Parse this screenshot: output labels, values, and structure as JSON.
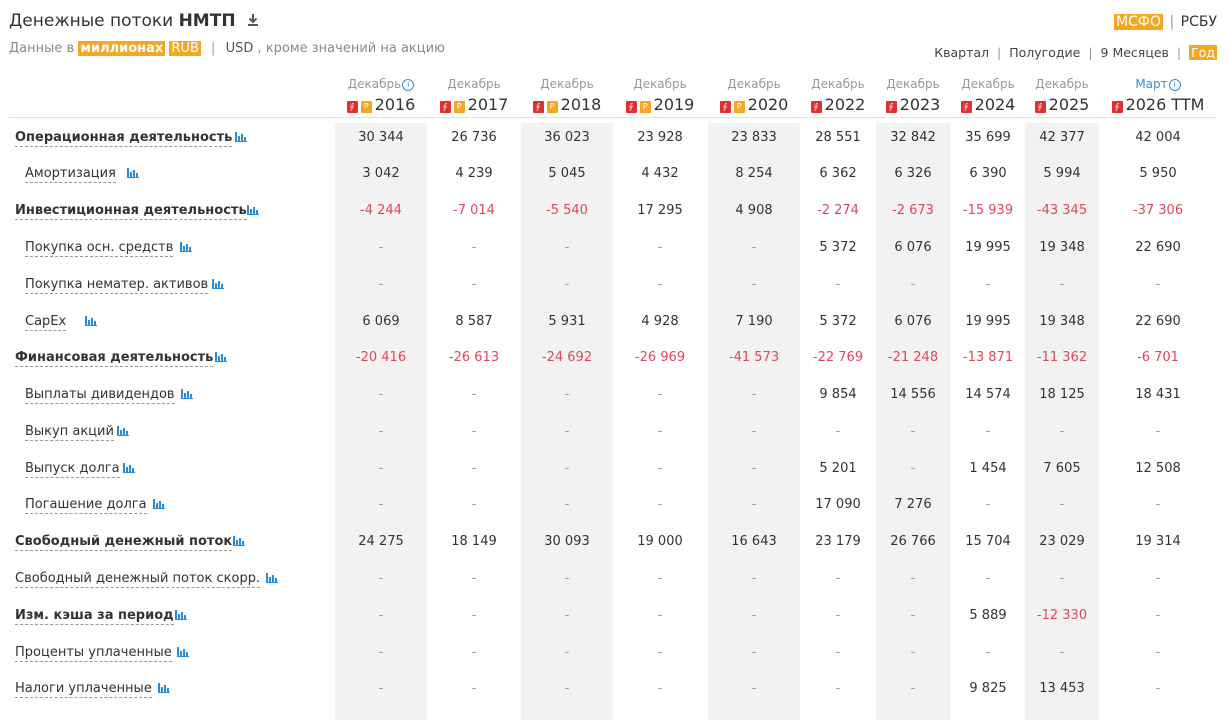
{
  "header": {
    "title_prefix": "Денежные потоки",
    "ticker": "НМТП",
    "subtitle_prefix": "Данные в",
    "units": "миллионах",
    "currency_rub": "RUB",
    "currency_usd": "USD",
    "subtitle_suffix": ", кроме значений на акцию",
    "std_ifrs": "МСФО",
    "std_ras": "РСБУ",
    "period_quarter": "Квартал",
    "period_half": "Полугодие",
    "period_9m": "9 Месяцев",
    "period_year": "Год",
    "colors": {
      "accent": "#f5a623",
      "negative": "#e0475b",
      "link": "#3a8fd0",
      "icon": "#2a8cd8"
    }
  },
  "columns": [
    {
      "month": "Декабрь",
      "info": true,
      "year": "2016",
      "pdf": true,
      "rsbu": true
    },
    {
      "month": "Декабрь",
      "info": false,
      "year": "2017",
      "pdf": true,
      "rsbu": true
    },
    {
      "month": "Декабрь",
      "info": false,
      "year": "2018",
      "pdf": true,
      "rsbu": true
    },
    {
      "month": "Декабрь",
      "info": false,
      "year": "2019",
      "pdf": true,
      "rsbu": true
    },
    {
      "month": "Декабрь",
      "info": false,
      "year": "2020",
      "pdf": true,
      "rsbu": true
    },
    {
      "month": "Декабрь",
      "info": false,
      "year": "2022",
      "pdf": true,
      "rsbu": false
    },
    {
      "month": "Декабрь",
      "info": false,
      "year": "2023",
      "pdf": true,
      "rsbu": false
    },
    {
      "month": "Декабрь",
      "info": false,
      "year": "2024",
      "pdf": true,
      "rsbu": false
    },
    {
      "month": "Декабрь",
      "info": false,
      "year": "2025",
      "pdf": true,
      "rsbu": false
    },
    {
      "month": "Март",
      "info": true,
      "year": "2026 TTM",
      "pdf": true,
      "rsbu": false
    }
  ],
  "rows": [
    {
      "label": "Операционная деятельность",
      "bold": true,
      "values": [
        "30 344",
        "26 736",
        "36 023",
        "23 928",
        "23 833",
        "28 551",
        "32 842",
        "35 699",
        "42 377",
        "42 004"
      ]
    },
    {
      "label": "Амортизация",
      "bold": false,
      "values": [
        "3 042",
        "4 239",
        "5 045",
        "4 432",
        "8 254",
        "6 362",
        "6 326",
        "6 390",
        "5 994",
        "5 950"
      ]
    },
    {
      "label": "Инвестиционная деятельность",
      "bold": true,
      "values": [
        "-4 244",
        "-7 014",
        "-5 540",
        "17 295",
        "4 908",
        "-2 274",
        "-2 673",
        "-15 939",
        "-43 345",
        "-37 306"
      ]
    },
    {
      "label": "Покупка осн. средств",
      "bold": false,
      "values": [
        "-",
        "-",
        "-",
        "-",
        "-",
        "5 372",
        "6 076",
        "19 995",
        "19 348",
        "22 690"
      ]
    },
    {
      "label": "Покупка нематер. активов",
      "bold": false,
      "values": [
        "-",
        "-",
        "-",
        "-",
        "-",
        "-",
        "-",
        "-",
        "-",
        "-"
      ]
    },
    {
      "label": "CapEx",
      "bold": false,
      "values": [
        "6 069",
        "8 587",
        "5 931",
        "4 928",
        "7 190",
        "5 372",
        "6 076",
        "19 995",
        "19 348",
        "22 690"
      ]
    },
    {
      "label": "Финансовая деятельность",
      "bold": true,
      "values": [
        "-20 416",
        "-26 613",
        "-24 692",
        "-26 969",
        "-41 573",
        "-22 769",
        "-21 248",
        "-13 871",
        "-11 362",
        "-6 701"
      ]
    },
    {
      "label": "Выплаты дивидендов",
      "bold": false,
      "values": [
        "-",
        "-",
        "-",
        "-",
        "-",
        "9 854",
        "14 556",
        "14 574",
        "18 125",
        "18 431"
      ]
    },
    {
      "label": "Выкуп акций",
      "bold": false,
      "values": [
        "-",
        "-",
        "-",
        "-",
        "-",
        "-",
        "-",
        "-",
        "-",
        "-"
      ]
    },
    {
      "label": "Выпуск долга",
      "bold": false,
      "values": [
        "-",
        "-",
        "-",
        "-",
        "-",
        "5 201",
        "-",
        "1 454",
        "7 605",
        "12 508"
      ]
    },
    {
      "label": "Погашение долга",
      "bold": false,
      "values": [
        "-",
        "-",
        "-",
        "-",
        "-",
        "17 090",
        "7 276",
        "-",
        "-",
        "-"
      ]
    },
    {
      "label": "Свободный денежный поток",
      "bold": true,
      "values": [
        "24 275",
        "18 149",
        "30 093",
        "19 000",
        "16 643",
        "23 179",
        "26 766",
        "15 704",
        "23 029",
        "19 314"
      ]
    },
    {
      "label": "Свободный денежный поток скорр.",
      "bold": false,
      "top": true,
      "values": [
        "-",
        "-",
        "-",
        "-",
        "-",
        "-",
        "-",
        "-",
        "-",
        "-"
      ]
    },
    {
      "label": "Изм. кэша за период",
      "bold": true,
      "values": [
        "-",
        "-",
        "-",
        "-",
        "-",
        "-",
        "-",
        "5 889",
        "-12 330",
        "-"
      ]
    },
    {
      "label": "Проценты уплаченные",
      "bold": false,
      "top": true,
      "values": [
        "-",
        "-",
        "-",
        "-",
        "-",
        "-",
        "-",
        "-",
        "-",
        "-"
      ]
    },
    {
      "label": "Налоги уплаченные",
      "bold": false,
      "top": true,
      "values": [
        "-",
        "-",
        "-",
        "-",
        "-",
        "-",
        "-",
        "9 825",
        "13 453",
        "-"
      ]
    }
  ]
}
